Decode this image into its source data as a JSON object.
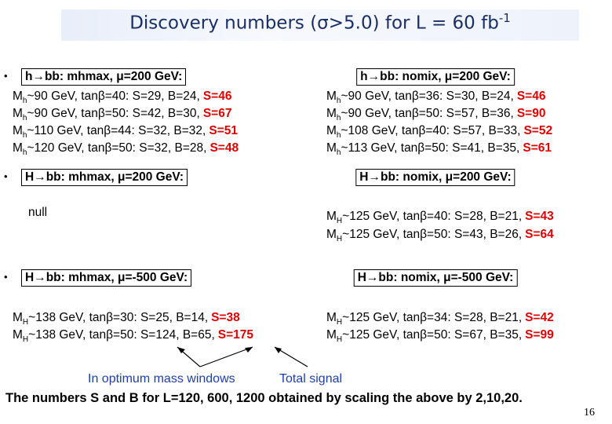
{
  "title": {
    "text": "Discovery numbers (σ>5.0) for L = 60 fb",
    "sup": "-1"
  },
  "left": [
    {
      "header": "h→bb: mhmax, μ=200 GeV:",
      "lines": [
        {
          "symbol": "M",
          "sub": "h",
          "rest": "~90 GeV, tanβ=40: S=29, B=24,",
          "signal": "S=46"
        },
        {
          "symbol": "M",
          "sub": "h",
          "rest": "~90 GeV, tanβ=50: S=42, B=30,",
          "signal": "S=67"
        },
        {
          "symbol": "M",
          "sub": "h",
          "rest": "~110 GeV, tanβ=44: S=32, B=32,",
          "signal": "S=51"
        },
        {
          "symbol": "M",
          "sub": "h",
          "rest": "~120 GeV, tanβ=50: S=32, B=28,",
          "signal": "S=48"
        }
      ]
    },
    {
      "header": "H→bb: mhmax, μ=200 GeV:",
      "note": "null"
    },
    {
      "header": "H→bb: mhmax, μ=-500 GeV:",
      "lines": [
        {
          "symbol": "M",
          "sub": "H",
          "rest": "~138 GeV, tanβ=30: S=25, B=14,",
          "signal": "S=38"
        },
        {
          "symbol": "M",
          "sub": "H",
          "rest": "~138 GeV, tanβ=50: S=124, B=65,",
          "signal": "S=175"
        }
      ]
    }
  ],
  "right": [
    {
      "header": "h→bb: nomix, μ=200 GeV:",
      "lines": [
        {
          "symbol": "M",
          "sub": "h",
          "rest": "~90 GeV, tanβ=36: S=30, B=24,",
          "signal": "S=46"
        },
        {
          "symbol": "M",
          "sub": "h",
          "rest": "~90 GeV, tanβ=50: S=57, B=36,",
          "signal": "S=90"
        },
        {
          "symbol": "M",
          "sub": "h",
          "rest": "~108 GeV, tanβ=40: S=57, B=33,",
          "signal": "S=52"
        },
        {
          "symbol": "M",
          "sub": "h",
          "rest": "~113 GeV, tanβ=50: S=41, B=35,",
          "signal": "S=61"
        }
      ]
    },
    {
      "header": "H→bb: nomix, μ=200 GeV:",
      "lines": [
        {
          "symbol": "M",
          "sub": "H",
          "rest": "~125 GeV, tanβ=40: S=28, B=21,",
          "signal": "S=43"
        },
        {
          "symbol": "M",
          "sub": "H",
          "rest": "~125 GeV, tanβ=50: S=43, B=26,",
          "signal": "S=64"
        }
      ]
    },
    {
      "header": "H→bb: nomix, μ=-500 GeV:",
      "lines": [
        {
          "symbol": "M",
          "sub": "H",
          "rest": "~125 GeV, tanβ=34: S=28, B=21,",
          "signal": "S=42"
        },
        {
          "symbol": "M",
          "sub": "H",
          "rest": "~125 GeV, tanβ=50: S=67, B=35,",
          "signal": "S=99"
        }
      ]
    }
  ],
  "annotations": {
    "mass_windows": "In optimum mass windows",
    "total_signal": "Total signal"
  },
  "footer": "The numbers S and B for L=120, 600, 1200 obtained by scaling the above by 2,10,20.",
  "page_number": "16"
}
